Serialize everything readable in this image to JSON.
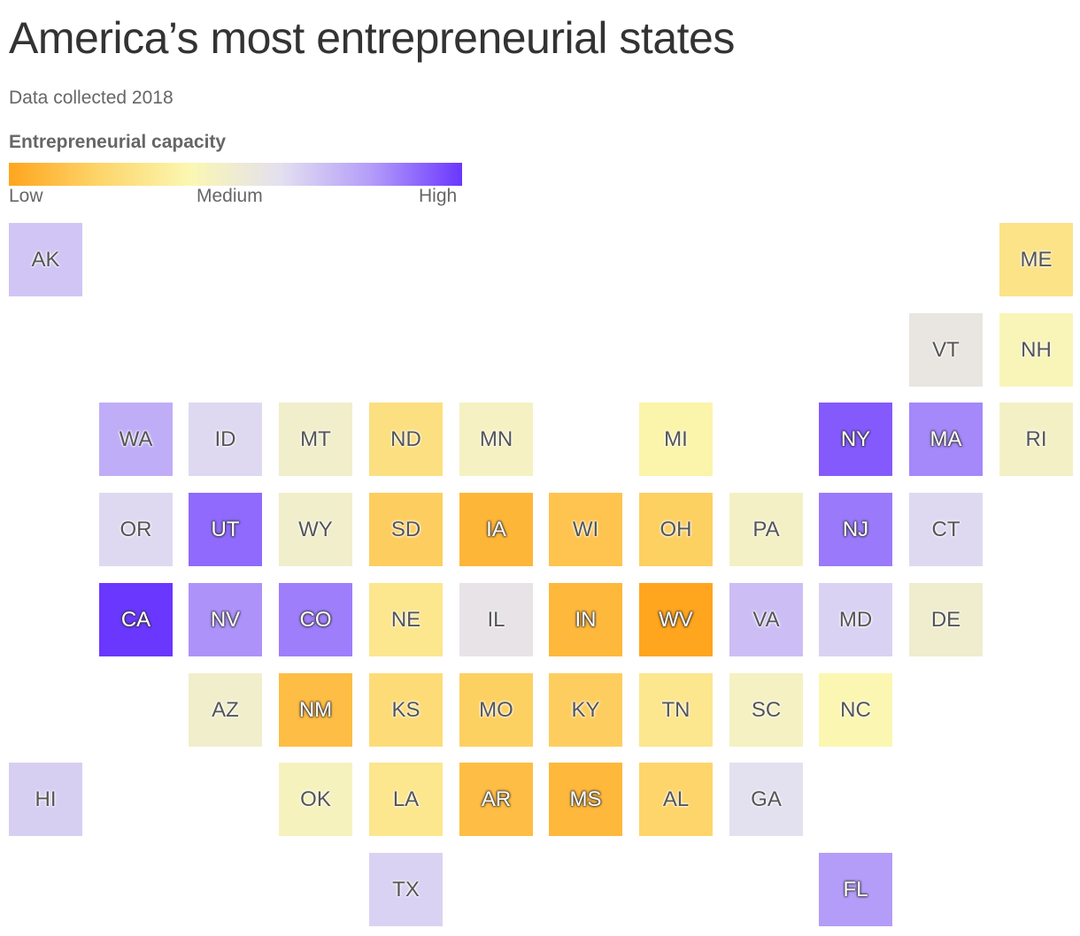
{
  "title": "America’s most entrepreneurial states",
  "subtitle": "Data collected 2018",
  "legend": {
    "title": "Entrepreneurial capacity",
    "low": "Low",
    "medium": "Medium",
    "high": "High",
    "colors": [
      "#ffa51e",
      "#fdd56a",
      "#fbf7b2",
      "#e3e0f0",
      "#b49cf9",
      "#6a37ff"
    ]
  },
  "chart_data": {
    "type": "heatmap",
    "scale": "Entrepreneurial capacity (0 = Low, 0.5 = Medium, 1 = High)",
    "cells": [
      {
        "state": "AK",
        "row": 0,
        "col": 0,
        "value": 0.68
      },
      {
        "state": "ME",
        "row": 0,
        "col": 11,
        "value": 0.28
      },
      {
        "state": "VT",
        "row": 1,
        "col": 10,
        "value": 0.55
      },
      {
        "state": "NH",
        "row": 1,
        "col": 11,
        "value": 0.42
      },
      {
        "state": "WA",
        "row": 2,
        "col": 1,
        "value": 0.75
      },
      {
        "state": "ID",
        "row": 2,
        "col": 2,
        "value": 0.62
      },
      {
        "state": "MT",
        "row": 2,
        "col": 3,
        "value": 0.48
      },
      {
        "state": "ND",
        "row": 2,
        "col": 4,
        "value": 0.26
      },
      {
        "state": "MN",
        "row": 2,
        "col": 5,
        "value": 0.45
      },
      {
        "state": "MI",
        "row": 2,
        "col": 7,
        "value": 0.38
      },
      {
        "state": "NY",
        "row": 2,
        "col": 9,
        "value": 0.93
      },
      {
        "state": "MA",
        "row": 2,
        "col": 10,
        "value": 0.84
      },
      {
        "state": "RI",
        "row": 2,
        "col": 11,
        "value": 0.46
      },
      {
        "state": "OR",
        "row": 3,
        "col": 1,
        "value": 0.62
      },
      {
        "state": "UT",
        "row": 3,
        "col": 2,
        "value": 0.9
      },
      {
        "state": "WY",
        "row": 3,
        "col": 3,
        "value": 0.48
      },
      {
        "state": "SD",
        "row": 3,
        "col": 4,
        "value": 0.17
      },
      {
        "state": "IA",
        "row": 3,
        "col": 5,
        "value": 0.07
      },
      {
        "state": "WI",
        "row": 3,
        "col": 6,
        "value": 0.13
      },
      {
        "state": "OH",
        "row": 3,
        "col": 7,
        "value": 0.18
      },
      {
        "state": "PA",
        "row": 3,
        "col": 8,
        "value": 0.46
      },
      {
        "state": "NJ",
        "row": 3,
        "col": 9,
        "value": 0.87
      },
      {
        "state": "CT",
        "row": 3,
        "col": 10,
        "value": 0.62
      },
      {
        "state": "CA",
        "row": 4,
        "col": 1,
        "value": 1.0
      },
      {
        "state": "NV",
        "row": 4,
        "col": 2,
        "value": 0.82
      },
      {
        "state": "CO",
        "row": 4,
        "col": 3,
        "value": 0.86
      },
      {
        "state": "NE",
        "row": 4,
        "col": 4,
        "value": 0.3
      },
      {
        "state": "IL",
        "row": 4,
        "col": 5,
        "value": 0.57
      },
      {
        "state": "IN",
        "row": 4,
        "col": 6,
        "value": 0.08
      },
      {
        "state": "WV",
        "row": 4,
        "col": 7,
        "value": 0.0
      },
      {
        "state": "VA",
        "row": 4,
        "col": 8,
        "value": 0.7
      },
      {
        "state": "MD",
        "row": 4,
        "col": 9,
        "value": 0.64
      },
      {
        "state": "DE",
        "row": 4,
        "col": 10,
        "value": 0.49
      },
      {
        "state": "AZ",
        "row": 5,
        "col": 2,
        "value": 0.48
      },
      {
        "state": "NM",
        "row": 5,
        "col": 3,
        "value": 0.1
      },
      {
        "state": "KS",
        "row": 5,
        "col": 4,
        "value": 0.24
      },
      {
        "state": "MO",
        "row": 5,
        "col": 5,
        "value": 0.18
      },
      {
        "state": "KY",
        "row": 5,
        "col": 6,
        "value": 0.17
      },
      {
        "state": "TN",
        "row": 5,
        "col": 7,
        "value": 0.3
      },
      {
        "state": "SC",
        "row": 5,
        "col": 8,
        "value": 0.45
      },
      {
        "state": "NC",
        "row": 5,
        "col": 9,
        "value": 0.4
      },
      {
        "state": "HI",
        "row": 6,
        "col": 0,
        "value": 0.65
      },
      {
        "state": "OK",
        "row": 6,
        "col": 3,
        "value": 0.44
      },
      {
        "state": "LA",
        "row": 6,
        "col": 4,
        "value": 0.3
      },
      {
        "state": "AR",
        "row": 6,
        "col": 5,
        "value": 0.1
      },
      {
        "state": "MS",
        "row": 6,
        "col": 6,
        "value": 0.08
      },
      {
        "state": "AL",
        "row": 6,
        "col": 7,
        "value": 0.2
      },
      {
        "state": "GA",
        "row": 6,
        "col": 8,
        "value": 0.6
      },
      {
        "state": "TX",
        "row": 7,
        "col": 4,
        "value": 0.64
      },
      {
        "state": "FL",
        "row": 7,
        "col": 9,
        "value": 0.8
      }
    ]
  }
}
